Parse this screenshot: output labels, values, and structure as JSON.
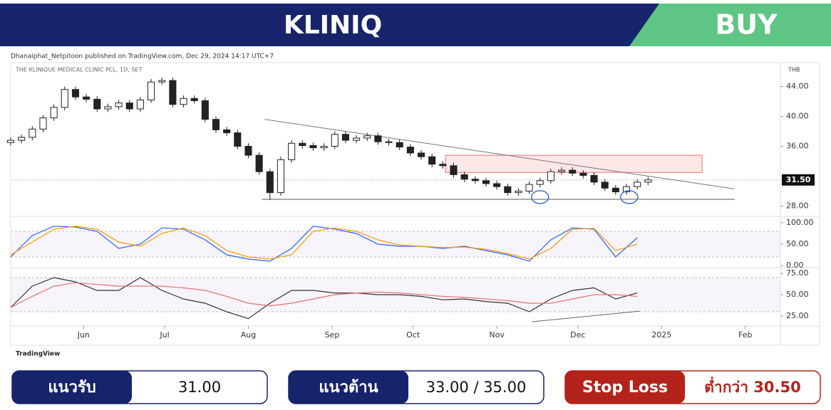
{
  "header": {
    "title": "KLINIQ",
    "signal": "BUY"
  },
  "published": "Dhanaiphat_Netpitoon published on TradingView.com, Dec 29, 2024 14:17 UTC+7",
  "footer": {
    "brand": "TradingView"
  },
  "chart_data": [
    {
      "type": "candlestick",
      "title": "THE KLINIQUE MEDICAL CLINIC PCL, 1D, SET",
      "currency": "THB",
      "xlim": [
        0,
        285
      ],
      "x": [
        0,
        4,
        8,
        12,
        16,
        20,
        24,
        28,
        32,
        36,
        40,
        44,
        48,
        52,
        56,
        60,
        64,
        68,
        72,
        76,
        80,
        84,
        88,
        92,
        96,
        100,
        104,
        108,
        112,
        116,
        120,
        124,
        128,
        132,
        136,
        140,
        144,
        148,
        152,
        156,
        160,
        164,
        168,
        172,
        176,
        180,
        184,
        188,
        192,
        196,
        200,
        204,
        208,
        212,
        216,
        220,
        224,
        228,
        232,
        236
      ],
      "open": [
        36.5,
        36.8,
        37.2,
        38.3,
        39.8,
        41.2,
        43.6,
        42.6,
        42.3,
        41.0,
        41.3,
        41.8,
        41.0,
        42.2,
        44.6,
        44.8,
        41.6,
        42.4,
        42.1,
        39.6,
        38.2,
        37.8,
        36.0,
        34.8,
        32.6,
        29.8,
        34.2,
        36.4,
        36.1,
        35.8,
        36.0,
        37.6,
        36.8,
        37.1,
        37.4,
        36.6,
        36.5,
        35.9,
        35.1,
        34.6,
        33.6,
        33.4,
        32.2,
        31.6,
        31.4,
        31.0,
        30.6,
        29.8,
        30.0,
        30.9,
        31.4,
        32.6,
        32.8,
        32.4,
        32.1,
        31.2,
        30.4,
        29.9,
        30.6,
        31.2
      ],
      "high": [
        37.2,
        37.6,
        38.7,
        40.2,
        41.6,
        44.0,
        44.0,
        43.0,
        42.7,
        41.7,
        42.2,
        42.2,
        42.6,
        45.0,
        45.2,
        45.2,
        42.8,
        42.8,
        42.5,
        40.0,
        38.6,
        38.2,
        36.4,
        35.2,
        33.0,
        34.6,
        36.8,
        36.8,
        36.5,
        36.4,
        38.0,
        38.0,
        37.5,
        37.8,
        37.8,
        37.0,
        36.9,
        36.3,
        35.5,
        35.0,
        34.0,
        33.8,
        32.6,
        32.0,
        31.8,
        31.4,
        31.0,
        30.4,
        31.3,
        31.8,
        33.0,
        33.2,
        33.2,
        32.8,
        32.5,
        31.6,
        30.8,
        31.0,
        31.6,
        31.9
      ],
      "low": [
        36.1,
        36.4,
        36.8,
        37.9,
        39.4,
        40.8,
        42.2,
        41.9,
        40.6,
        40.6,
        40.9,
        40.6,
        40.6,
        41.8,
        44.2,
        41.2,
        41.2,
        41.7,
        39.2,
        37.8,
        37.4,
        35.6,
        34.4,
        32.2,
        28.8,
        29.4,
        33.8,
        35.7,
        35.4,
        35.4,
        35.6,
        36.4,
        36.4,
        36.7,
        36.2,
        36.1,
        35.5,
        34.7,
        34.2,
        33.2,
        33.0,
        31.8,
        31.2,
        31.0,
        30.6,
        30.2,
        29.4,
        29.4,
        29.6,
        30.5,
        31.0,
        32.2,
        32.0,
        31.7,
        30.8,
        30.0,
        29.5,
        29.5,
        30.2,
        30.8
      ],
      "close": [
        36.8,
        37.2,
        38.3,
        39.8,
        41.2,
        43.6,
        42.6,
        42.3,
        41.0,
        41.3,
        41.8,
        41.0,
        42.2,
        44.6,
        44.8,
        41.6,
        42.4,
        42.1,
        39.6,
        38.2,
        37.8,
        36.0,
        34.8,
        32.6,
        29.8,
        34.2,
        36.4,
        36.1,
        35.8,
        36.0,
        37.6,
        36.8,
        37.1,
        37.4,
        36.6,
        36.5,
        35.9,
        35.1,
        34.6,
        33.6,
        33.4,
        32.2,
        31.6,
        31.4,
        31.0,
        30.6,
        29.8,
        30.0,
        30.9,
        31.4,
        32.6,
        32.8,
        32.4,
        32.1,
        31.2,
        30.4,
        29.9,
        30.6,
        31.2,
        31.5
      ],
      "up_color": "#ffffff",
      "down_color": "#222222",
      "ylim": [
        27,
        47
      ],
      "yticks": [
        {
          "value": 28,
          "label": "28.00"
        },
        {
          "value": 36,
          "label": "36.00"
        },
        {
          "value": 40,
          "label": "40.00"
        },
        {
          "value": 44,
          "label": "44.00"
        }
      ],
      "last_price": {
        "value": 31.5,
        "label": "31.50"
      },
      "trendline": {
        "x": [
          94,
          268
        ],
        "y": [
          39.6,
          30.3
        ]
      },
      "support": {
        "x": [
          93,
          268
        ],
        "y": 28.9
      },
      "zone": {
        "x": [
          161,
          256
        ],
        "y": [
          32.5,
          34.8
        ]
      },
      "markers": {
        "x": [
          196,
          229
        ],
        "y": 29.2
      }
    },
    {
      "type": "line",
      "xlim": [
        0,
        285
      ],
      "x": [
        0,
        8,
        16,
        24,
        32,
        40,
        48,
        56,
        64,
        72,
        80,
        88,
        96,
        104,
        112,
        120,
        128,
        136,
        144,
        152,
        160,
        168,
        176,
        184,
        192,
        200,
        208,
        216,
        224,
        232
      ],
      "series": [
        {
          "color": "#2962ff",
          "values": [
            20,
            70,
            92,
            90,
            80,
            40,
            50,
            88,
            85,
            60,
            25,
            15,
            10,
            40,
            92,
            85,
            75,
            50,
            45,
            45,
            40,
            45,
            35,
            25,
            10,
            60,
            88,
            85,
            20,
            65
          ]
        },
        {
          "color": "#ff9800",
          "values": [
            25,
            55,
            85,
            92,
            85,
            55,
            45,
            75,
            88,
            70,
            35,
            20,
            15,
            25,
            80,
            88,
            80,
            60,
            48,
            45,
            42,
            43,
            38,
            28,
            15,
            40,
            85,
            87,
            35,
            50
          ]
        }
      ],
      "ylim": [
        0,
        105
      ],
      "yticks": [
        {
          "value": 0,
          "label": "0.00"
        },
        {
          "value": 50,
          "label": "50.00"
        },
        {
          "value": 100,
          "label": "100.00"
        }
      ],
      "bands": [
        20,
        80
      ]
    },
    {
      "type": "line",
      "xlim": [
        0,
        285
      ],
      "x": [
        0,
        8,
        16,
        24,
        32,
        40,
        48,
        56,
        64,
        72,
        80,
        88,
        96,
        104,
        112,
        120,
        128,
        136,
        144,
        152,
        160,
        168,
        176,
        184,
        192,
        200,
        208,
        216,
        224,
        232
      ],
      "series": [
        {
          "color": "#333333",
          "values": [
            35,
            60,
            70,
            65,
            55,
            55,
            70,
            55,
            45,
            40,
            30,
            22,
            40,
            55,
            55,
            52,
            52,
            50,
            50,
            48,
            44,
            45,
            42,
            40,
            30,
            45,
            55,
            58,
            45,
            52
          ]
        },
        {
          "color": "#e57373",
          "values": [
            35,
            48,
            60,
            64,
            62,
            60,
            60,
            60,
            58,
            55,
            48,
            40,
            37,
            40,
            45,
            50,
            52,
            53,
            52,
            50,
            48,
            47,
            45,
            43,
            40,
            40,
            45,
            50,
            50,
            48
          ]
        }
      ],
      "ylim": [
        15,
        80
      ],
      "yticks": [
        {
          "value": 25,
          "label": "25.00"
        },
        {
          "value": 50,
          "label": "50.00"
        },
        {
          "value": 75,
          "label": "75.00"
        }
      ],
      "bands": [
        30,
        70
      ],
      "trendline": {
        "x": [
          193,
          233
        ],
        "y": [
          18.3,
          30.8
        ]
      },
      "xticks": [
        {
          "value": 27,
          "label": "Jun"
        },
        {
          "value": 57,
          "label": "Jul"
        },
        {
          "value": 88,
          "label": "Aug"
        },
        {
          "value": 119,
          "label": "Sep"
        },
        {
          "value": 149,
          "label": "Oct"
        },
        {
          "value": 180,
          "label": "Nov"
        },
        {
          "value": 210,
          "label": "Dec"
        },
        {
          "value": 241,
          "label": "2025"
        },
        {
          "value": 272,
          "label": "Feb"
        }
      ]
    }
  ],
  "levels": [
    {
      "label": "แนวรับ",
      "value": "31.00"
    },
    {
      "label": "แนวต้าน",
      "value": "33.00 / 35.00"
    },
    {
      "label": "Stop Loss",
      "value": "ต่ำกว่า 30.50"
    }
  ]
}
